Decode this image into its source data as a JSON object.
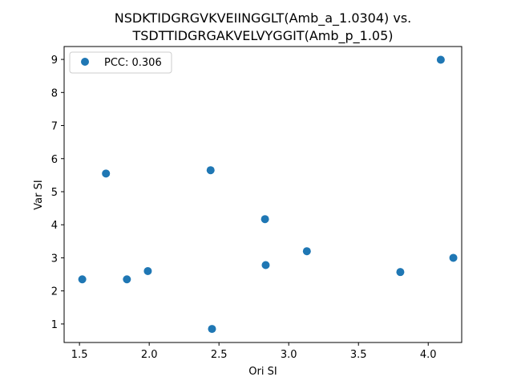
{
  "chart_data": {
    "type": "scatter",
    "title": "NSDKTIDGRGVKVEIINGGLT(Amb_a_1.0304) vs.\nTSDTTIDGRGAKVELVYGGIT(Amb_p_1.05)",
    "title_lines": [
      "NSDKTIDGRGVKVEIINGGLT(Amb_a_1.0304) vs.",
      "TSDTTIDGRGAKVELVYGGIT(Amb_p_1.05)"
    ],
    "xlabel": "Ori SI",
    "ylabel": "Var SI",
    "xlim": [
      1.39,
      4.24
    ],
    "ylim": [
      0.44,
      9.39
    ],
    "xticks": [
      "1.5",
      "2.0",
      "2.5",
      "3.0",
      "3.5",
      "4.0"
    ],
    "yticks": [
      "1",
      "2",
      "3",
      "4",
      "5",
      "6",
      "7",
      "8",
      "9"
    ],
    "grid": false,
    "legend_position": "top-left",
    "series": [
      {
        "name": "PCC: 0.306",
        "color": "#1f77b4",
        "x": [
          1.52,
          1.69,
          1.84,
          1.99,
          2.44,
          2.45,
          2.83,
          2.835,
          3.13,
          3.8,
          4.09,
          4.18
        ],
        "y": [
          2.35,
          5.55,
          2.35,
          2.6,
          5.65,
          0.85,
          4.17,
          2.78,
          3.2,
          2.57,
          8.99,
          3.0
        ]
      }
    ]
  }
}
